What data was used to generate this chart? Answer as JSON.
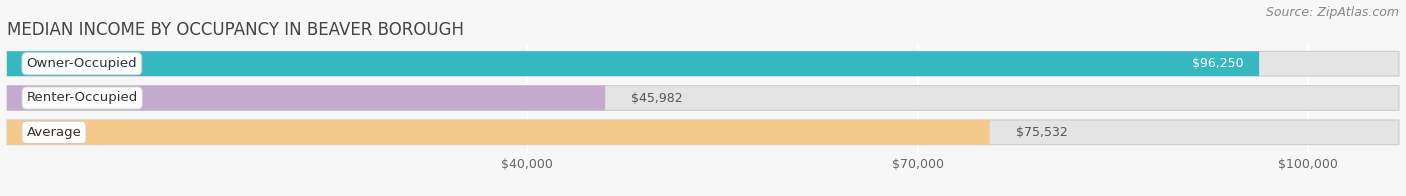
{
  "title": "MEDIAN INCOME BY OCCUPANCY IN BEAVER BOROUGH",
  "source": "Source: ZipAtlas.com",
  "categories": [
    "Owner-Occupied",
    "Renter-Occupied",
    "Average"
  ],
  "values": [
    96250,
    45982,
    75532
  ],
  "bar_colors": [
    "#35b8c0",
    "#c4aacf",
    "#f5c98a"
  ],
  "bar_labels": [
    "$96,250",
    "$45,982",
    "$75,532"
  ],
  "x_ticks": [
    40000,
    70000,
    100000
  ],
  "x_tick_labels": [
    "$40,000",
    "$70,000",
    "$100,000"
  ],
  "xlim_max": 107000,
  "bar_height": 0.72,
  "background_color": "#f7f7f7",
  "bar_bg_color": "#e4e4e4",
  "title_fontsize": 12,
  "source_fontsize": 9,
  "tick_fontsize": 9,
  "bar_label_fontsize": 9,
  "cat_label_fontsize": 9.5,
  "value_inside_threshold": 80000
}
